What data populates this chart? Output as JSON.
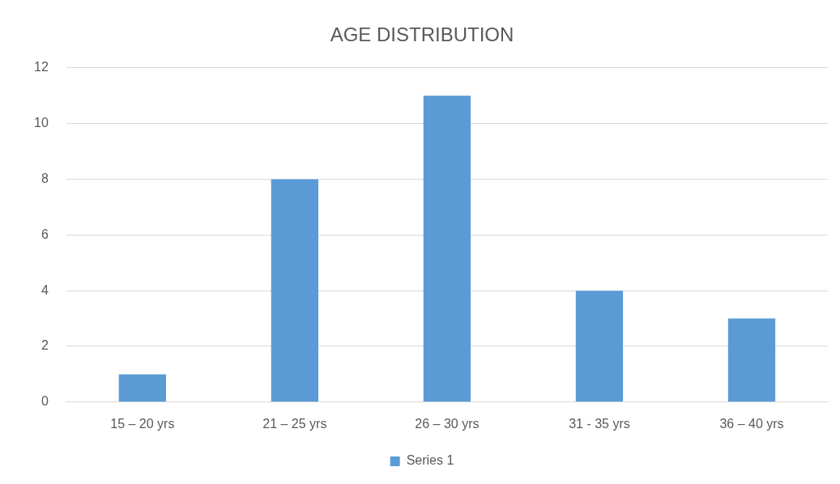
{
  "chart_data": {
    "type": "bar",
    "title": "AGE DISTRIBUTION",
    "categories": [
      "15 – 20 yrs",
      "21 – 25 yrs",
      "26 – 30 yrs",
      "31 - 35 yrs",
      "36 – 40 yrs"
    ],
    "series": [
      {
        "name": "Series 1",
        "color": "#5b9bd5",
        "values": [
          1,
          8,
          11,
          4,
          3
        ]
      }
    ],
    "ylim": [
      0,
      12
    ],
    "yticks": [
      0,
      2,
      4,
      6,
      8,
      10,
      12
    ],
    "grid": "y",
    "legend": "bottom"
  }
}
